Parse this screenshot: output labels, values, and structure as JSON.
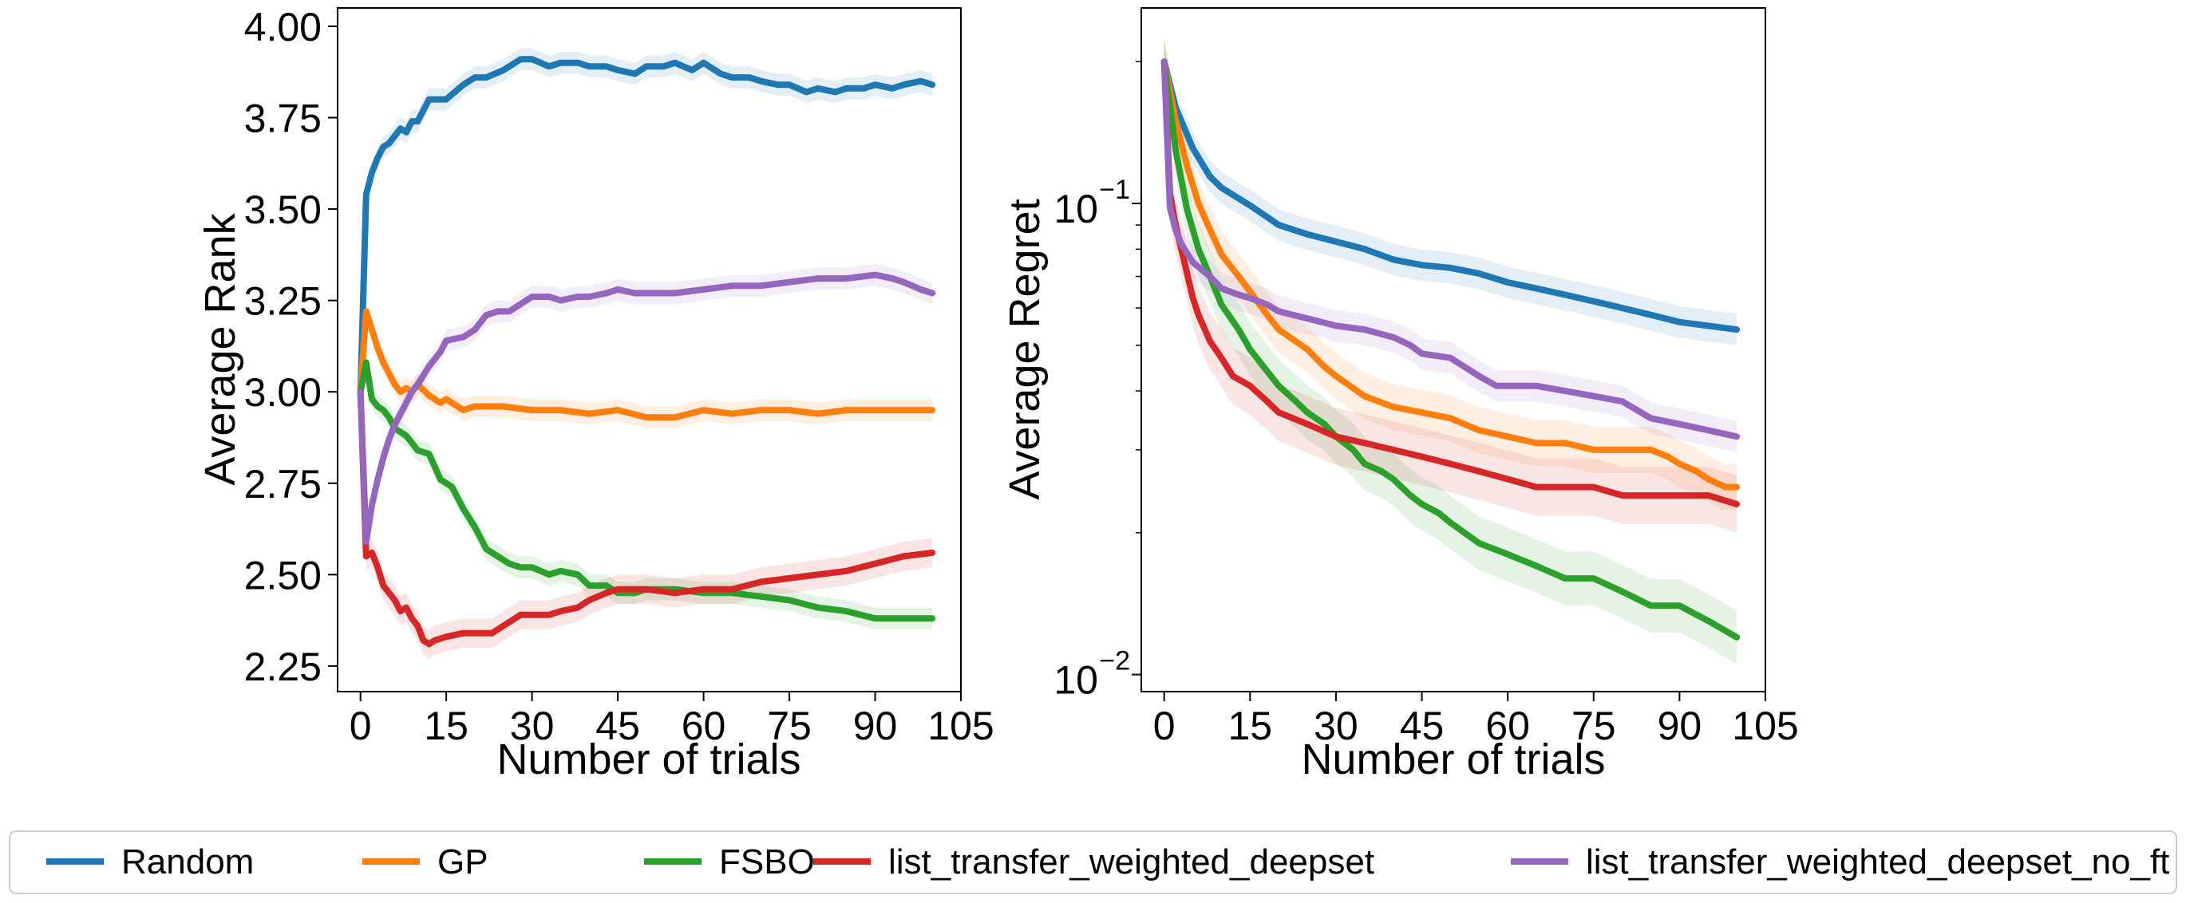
{
  "legend": {
    "placement": "bottom-center",
    "entries": [
      {
        "name": "Random",
        "color": "#1f77b4"
      },
      {
        "name": "GP",
        "color": "#ff7f0e"
      },
      {
        "name": "FSBO",
        "color": "#2ca02c"
      },
      {
        "name": "list_transfer_weighted_deepset",
        "color": "#d62728"
      },
      {
        "name": "list_transfer_weighted_deepset_no_ft",
        "color": "#9467bd"
      }
    ]
  },
  "chart_data": [
    {
      "type": "line",
      "title": "",
      "xlabel": "Number of trials",
      "ylabel": "Average Rank",
      "xlim": [
        -4,
        105
      ],
      "ylim": [
        2.18,
        4.05
      ],
      "xticks": [
        0,
        15,
        30,
        45,
        60,
        75,
        90,
        105
      ],
      "yticks": [
        2.25,
        2.5,
        2.75,
        3.0,
        3.25,
        3.5,
        3.75,
        4.0
      ],
      "ytick_labels": [
        "2.25",
        "2.50",
        "2.75",
        "3.00",
        "3.25",
        "3.50",
        "3.75",
        "4.00"
      ],
      "grid": false,
      "series": [
        {
          "name": "Random",
          "color": "#1f77b4",
          "band": 0.03,
          "x": [
            0,
            1,
            2,
            3,
            4,
            5,
            6,
            7,
            8,
            9,
            10,
            12,
            15,
            18,
            20,
            22,
            25,
            28,
            30,
            33,
            35,
            38,
            40,
            43,
            45,
            48,
            50,
            53,
            55,
            58,
            60,
            63,
            65,
            68,
            70,
            73,
            75,
            78,
            80,
            83,
            85,
            88,
            90,
            93,
            95,
            98,
            100
          ],
          "y": [
            3.0,
            3.54,
            3.6,
            3.64,
            3.67,
            3.68,
            3.7,
            3.72,
            3.71,
            3.74,
            3.74,
            3.8,
            3.8,
            3.84,
            3.86,
            3.86,
            3.88,
            3.91,
            3.91,
            3.89,
            3.9,
            3.9,
            3.89,
            3.89,
            3.88,
            3.87,
            3.89,
            3.89,
            3.9,
            3.88,
            3.9,
            3.87,
            3.86,
            3.86,
            3.85,
            3.84,
            3.84,
            3.82,
            3.83,
            3.82,
            3.83,
            3.83,
            3.84,
            3.83,
            3.84,
            3.85,
            3.84
          ]
        },
        {
          "name": "GP",
          "color": "#ff7f0e",
          "band": 0.03,
          "x": [
            0,
            1,
            2,
            3,
            4,
            5,
            6,
            7,
            8,
            9,
            10,
            12,
            14,
            15,
            18,
            20,
            25,
            30,
            35,
            40,
            45,
            50,
            55,
            60,
            65,
            70,
            75,
            80,
            85,
            90,
            95,
            100
          ],
          "y": [
            3.0,
            3.22,
            3.17,
            3.12,
            3.08,
            3.05,
            3.02,
            3.0,
            3.01,
            3.0,
            3.02,
            2.99,
            2.97,
            2.98,
            2.95,
            2.96,
            2.96,
            2.95,
            2.95,
            2.94,
            2.95,
            2.93,
            2.93,
            2.95,
            2.94,
            2.95,
            2.95,
            2.94,
            2.95,
            2.95,
            2.95,
            2.95
          ]
        },
        {
          "name": "FSBO",
          "color": "#2ca02c",
          "band": 0.03,
          "x": [
            0,
            1,
            2,
            3,
            4,
            5,
            6,
            8,
            10,
            12,
            14,
            16,
            18,
            20,
            22,
            24,
            26,
            28,
            30,
            33,
            35,
            38,
            40,
            43,
            45,
            48,
            50,
            55,
            60,
            65,
            70,
            75,
            80,
            85,
            90,
            95,
            100
          ],
          "y": [
            3.0,
            3.08,
            2.98,
            2.96,
            2.95,
            2.93,
            2.9,
            2.88,
            2.84,
            2.83,
            2.76,
            2.74,
            2.68,
            2.63,
            2.57,
            2.55,
            2.53,
            2.52,
            2.52,
            2.5,
            2.51,
            2.5,
            2.47,
            2.47,
            2.45,
            2.45,
            2.46,
            2.46,
            2.45,
            2.45,
            2.44,
            2.43,
            2.41,
            2.4,
            2.38,
            2.38,
            2.38
          ]
        },
        {
          "name": "list_transfer_weighted_deepset",
          "color": "#d62728",
          "band": 0.04,
          "x": [
            0,
            1,
            2,
            3,
            4,
            5,
            6,
            7,
            8,
            9,
            10,
            11,
            12,
            13,
            15,
            18,
            20,
            23,
            25,
            28,
            30,
            33,
            35,
            38,
            40,
            43,
            45,
            48,
            50,
            55,
            60,
            65,
            70,
            75,
            80,
            85,
            90,
            95,
            100
          ],
          "y": [
            3.0,
            2.55,
            2.56,
            2.52,
            2.47,
            2.45,
            2.43,
            2.4,
            2.41,
            2.38,
            2.36,
            2.32,
            2.31,
            2.32,
            2.33,
            2.34,
            2.34,
            2.34,
            2.36,
            2.39,
            2.39,
            2.39,
            2.4,
            2.41,
            2.43,
            2.45,
            2.46,
            2.46,
            2.46,
            2.45,
            2.46,
            2.46,
            2.48,
            2.49,
            2.5,
            2.51,
            2.53,
            2.55,
            2.56
          ]
        },
        {
          "name": "list_transfer_weighted_deepset_no_ft",
          "color": "#9467bd",
          "band": 0.03,
          "x": [
            0,
            1,
            2,
            3,
            4,
            5,
            6,
            7,
            8,
            9,
            10,
            12,
            14,
            15,
            18,
            20,
            22,
            24,
            26,
            28,
            30,
            33,
            35,
            38,
            40,
            43,
            45,
            48,
            50,
            55,
            60,
            65,
            70,
            75,
            80,
            85,
            90,
            93,
            95,
            98,
            100
          ],
          "y": [
            3.0,
            2.59,
            2.69,
            2.76,
            2.82,
            2.87,
            2.91,
            2.94,
            2.97,
            3.0,
            3.02,
            3.07,
            3.11,
            3.14,
            3.15,
            3.17,
            3.21,
            3.22,
            3.22,
            3.24,
            3.26,
            3.26,
            3.25,
            3.26,
            3.26,
            3.27,
            3.28,
            3.27,
            3.27,
            3.27,
            3.28,
            3.29,
            3.29,
            3.3,
            3.31,
            3.31,
            3.32,
            3.31,
            3.3,
            3.28,
            3.27
          ]
        }
      ]
    },
    {
      "type": "line",
      "title": "",
      "xlabel": "Number of trials",
      "ylabel": "Average Regret",
      "yscale": "log",
      "xlim": [
        -4,
        105
      ],
      "ylim": [
        0.0092,
        0.26
      ],
      "xticks": [
        0,
        15,
        30,
        45,
        60,
        75,
        90,
        105
      ],
      "ytick_labels": [
        {
          "value": 0.1,
          "base": "10",
          "exp": "−1"
        },
        {
          "value": 0.01,
          "base": "10",
          "exp": "−2"
        }
      ],
      "grid": false,
      "series": [
        {
          "name": "Random",
          "color": "#1f77b4",
          "band_factor": 1.08,
          "x": [
            0,
            2,
            5,
            8,
            10,
            15,
            20,
            25,
            30,
            35,
            40,
            45,
            50,
            55,
            60,
            65,
            70,
            75,
            80,
            85,
            90,
            95,
            100
          ],
          "y": [
            0.2,
            0.16,
            0.131,
            0.114,
            0.108,
            0.099,
            0.09,
            0.086,
            0.083,
            0.08,
            0.076,
            0.074,
            0.073,
            0.071,
            0.068,
            0.066,
            0.064,
            0.062,
            0.06,
            0.058,
            0.056,
            0.055,
            0.054
          ]
        },
        {
          "name": "GP",
          "color": "#ff7f0e",
          "band_factor": 1.12,
          "x": [
            0,
            2,
            4,
            6,
            8,
            10,
            13,
            15,
            18,
            20,
            25,
            28,
            30,
            35,
            40,
            45,
            50,
            55,
            60,
            65,
            70,
            75,
            80,
            85,
            88,
            90,
            93,
            95,
            98,
            100
          ],
          "y": [
            0.2,
            0.15,
            0.12,
            0.1,
            0.088,
            0.078,
            0.07,
            0.065,
            0.058,
            0.054,
            0.049,
            0.045,
            0.043,
            0.039,
            0.037,
            0.036,
            0.035,
            0.033,
            0.032,
            0.031,
            0.031,
            0.03,
            0.03,
            0.03,
            0.029,
            0.028,
            0.027,
            0.026,
            0.025,
            0.025
          ]
        },
        {
          "name": "FSBO",
          "color": "#2ca02c",
          "band_factor": 1.14,
          "x": [
            0,
            2,
            4,
            6,
            8,
            10,
            13,
            15,
            18,
            20,
            23,
            25,
            28,
            30,
            33,
            35,
            38,
            40,
            43,
            45,
            48,
            50,
            55,
            60,
            65,
            70,
            75,
            80,
            85,
            90,
            95,
            100
          ],
          "y": [
            0.2,
            0.13,
            0.097,
            0.08,
            0.07,
            0.061,
            0.054,
            0.049,
            0.044,
            0.041,
            0.038,
            0.036,
            0.034,
            0.032,
            0.03,
            0.028,
            0.027,
            0.026,
            0.024,
            0.023,
            0.022,
            0.021,
            0.019,
            0.018,
            0.017,
            0.016,
            0.016,
            0.015,
            0.014,
            0.014,
            0.013,
            0.012
          ]
        },
        {
          "name": "list_transfer_weighted_deepset",
          "color": "#d62728",
          "band_factor": 1.15,
          "x": [
            0,
            1,
            2,
            3,
            4,
            5,
            6,
            8,
            10,
            12,
            15,
            18,
            20,
            25,
            30,
            35,
            40,
            45,
            50,
            55,
            60,
            65,
            70,
            75,
            80,
            85,
            90,
            95,
            100
          ],
          "y": [
            0.2,
            0.105,
            0.09,
            0.08,
            0.071,
            0.063,
            0.058,
            0.051,
            0.047,
            0.043,
            0.041,
            0.038,
            0.036,
            0.034,
            0.032,
            0.031,
            0.03,
            0.029,
            0.028,
            0.027,
            0.026,
            0.025,
            0.025,
            0.025,
            0.024,
            0.024,
            0.024,
            0.024,
            0.023
          ]
        },
        {
          "name": "list_transfer_weighted_deepset_no_ft",
          "color": "#9467bd",
          "band_factor": 1.08,
          "x": [
            0,
            1,
            2,
            3,
            5,
            8,
            10,
            13,
            15,
            18,
            20,
            25,
            30,
            35,
            40,
            43,
            45,
            50,
            55,
            58,
            60,
            65,
            70,
            75,
            80,
            85,
            90,
            95,
            100
          ],
          "y": [
            0.2,
            0.098,
            0.088,
            0.082,
            0.075,
            0.07,
            0.066,
            0.064,
            0.063,
            0.061,
            0.059,
            0.057,
            0.055,
            0.054,
            0.052,
            0.05,
            0.048,
            0.047,
            0.043,
            0.041,
            0.041,
            0.041,
            0.04,
            0.039,
            0.038,
            0.035,
            0.034,
            0.033,
            0.032
          ]
        }
      ]
    }
  ]
}
